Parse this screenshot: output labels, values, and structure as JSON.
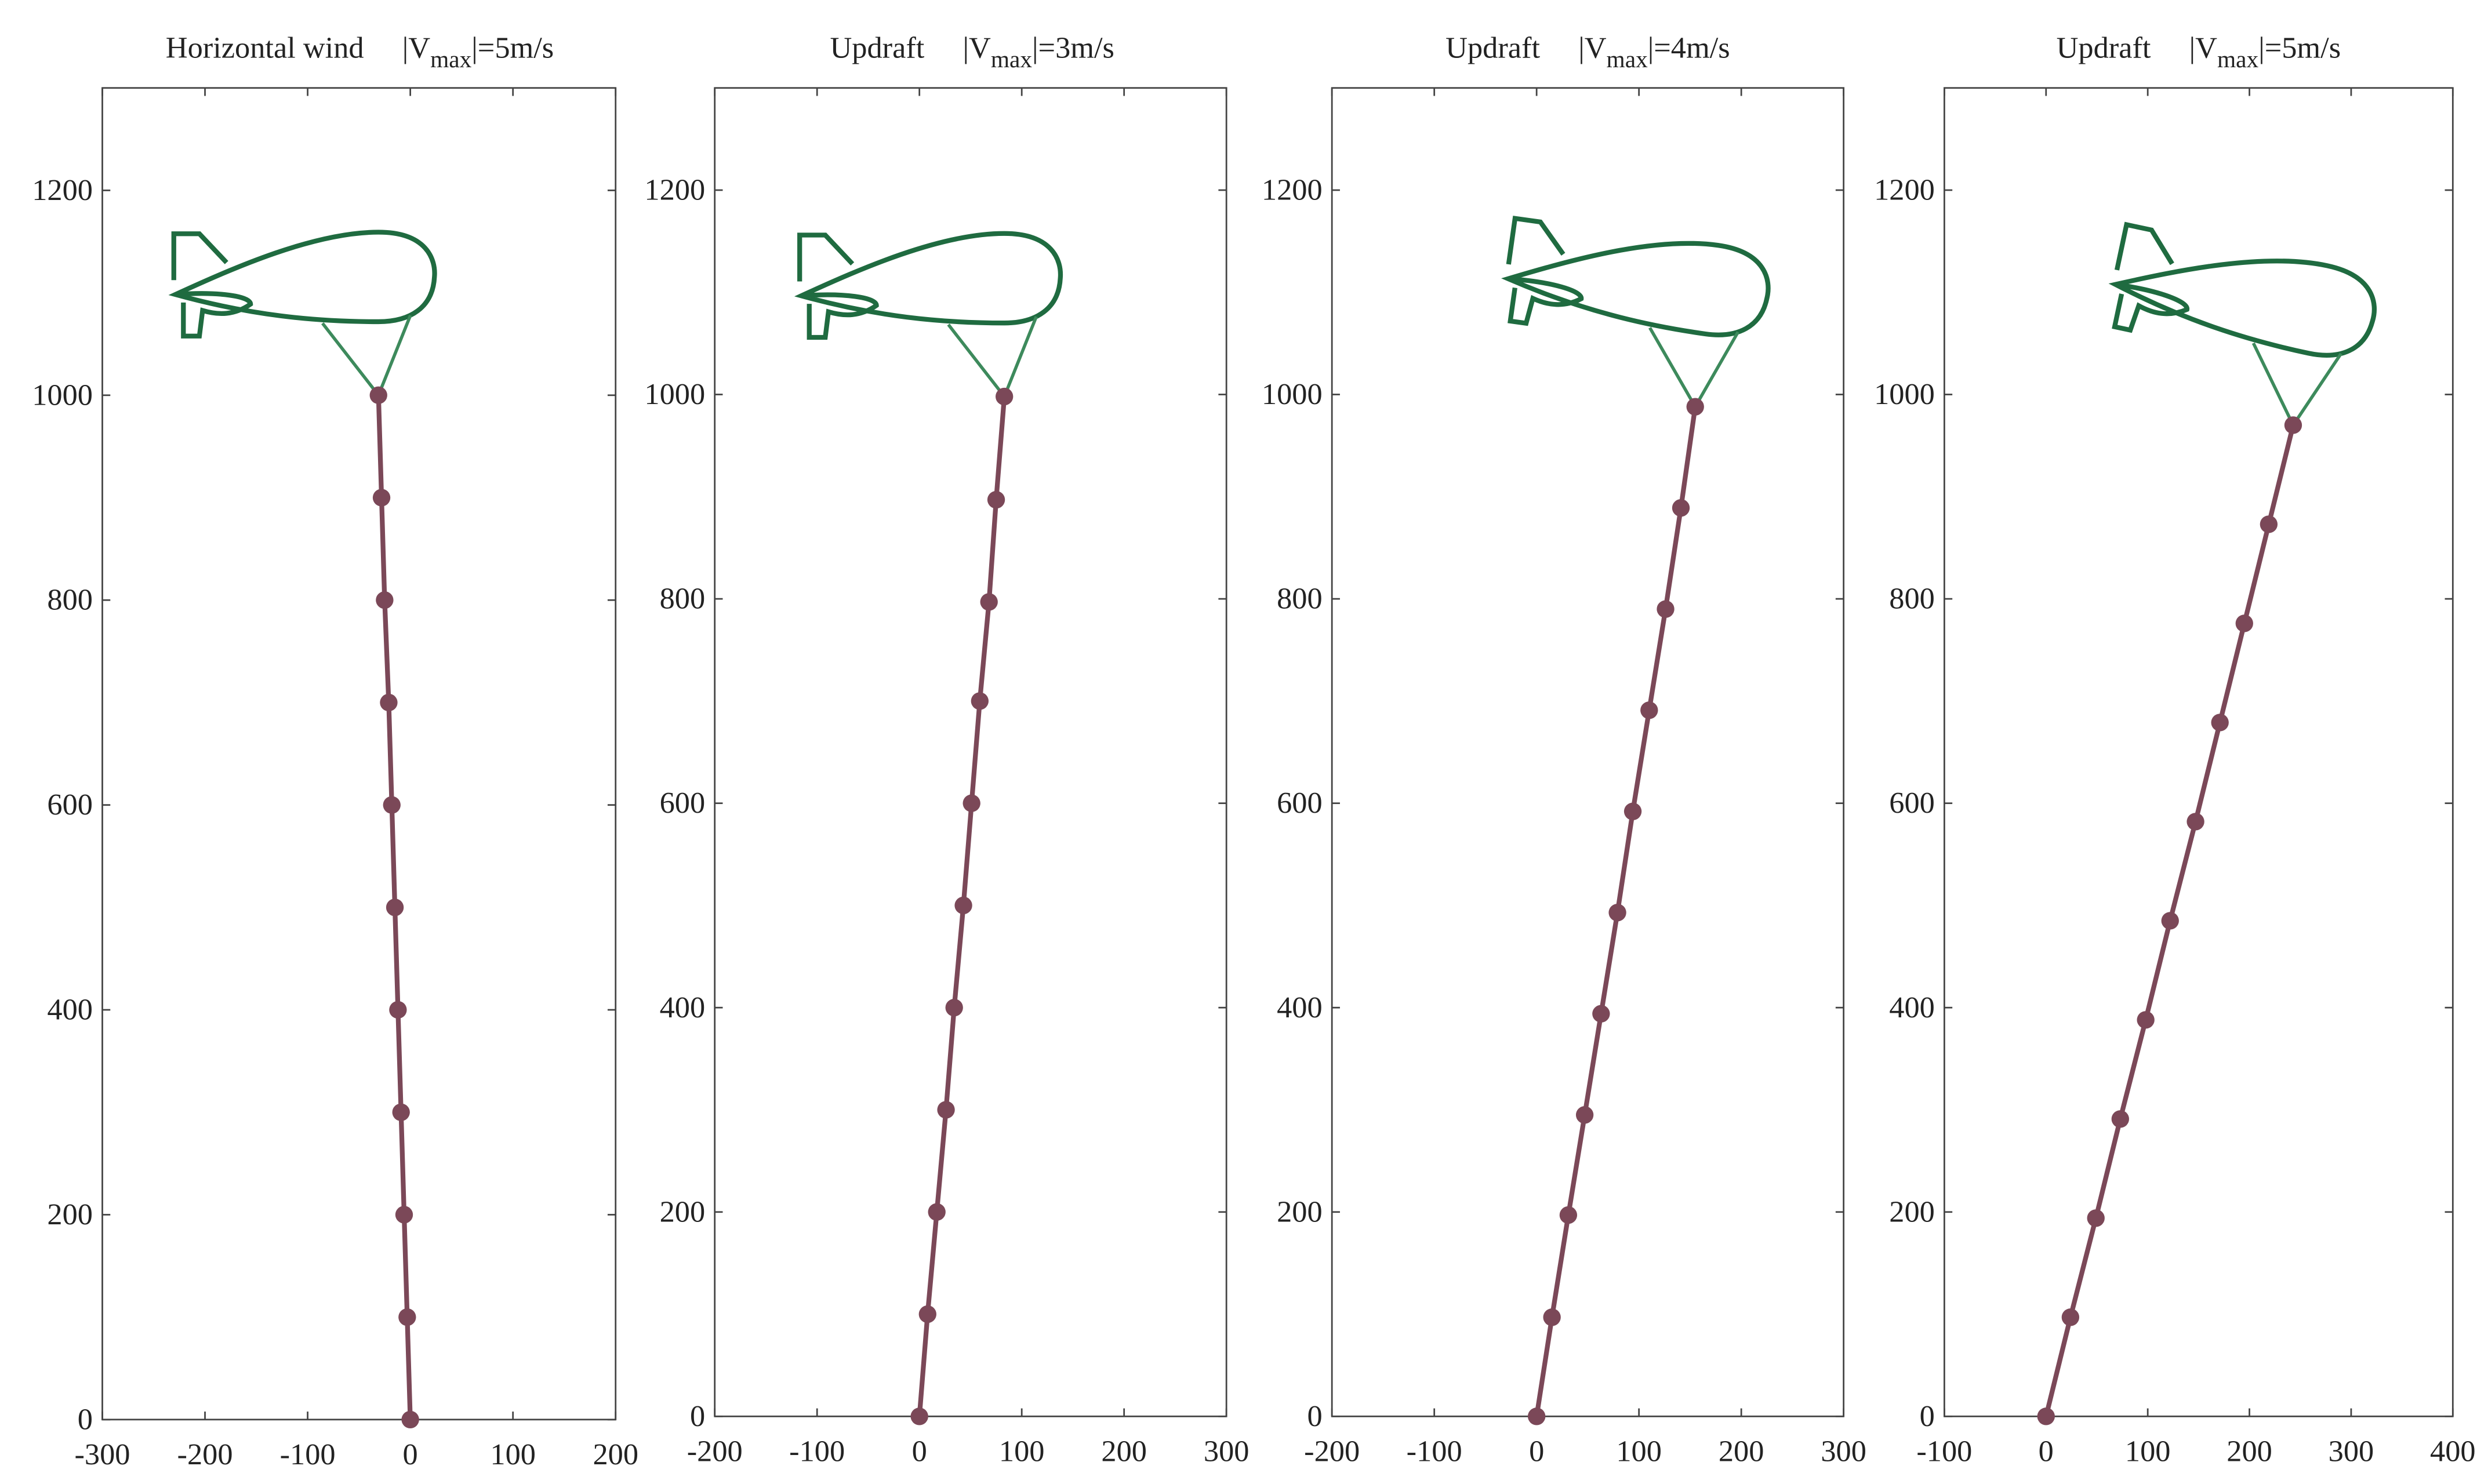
{
  "chart_data": [
    {
      "type": "line",
      "title": "Horizontal wind",
      "title_math": [
        "|V",
        "max",
        "|=5m/s"
      ],
      "xlim": [
        -300,
        200
      ],
      "xticks": [
        -300,
        -200,
        -100,
        0,
        100,
        200
      ],
      "ylim": [
        0,
        1300
      ],
      "yticks": [
        0,
        200,
        400,
        600,
        800,
        1000,
        1200
      ],
      "series": [
        {
          "color": "#7b4858",
          "x": [
            0,
            -3,
            -6,
            -9,
            -12,
            -15,
            -18,
            -21,
            -25,
            -28,
            -31
          ],
          "values": [
            0,
            100,
            200,
            300,
            400,
            500,
            600,
            700,
            800,
            900,
            1000
          ]
        }
      ]
    },
    {
      "type": "line",
      "title": "Updraft",
      "title_math": [
        "|V",
        "max",
        "|=3m/s"
      ],
      "xlim": [
        -200,
        300
      ],
      "xticks": [
        -200,
        -100,
        0,
        100,
        200,
        300
      ],
      "ylim": [
        0,
        1300
      ],
      "yticks": [
        0,
        200,
        400,
        600,
        800,
        1000,
        1200
      ],
      "series": [
        {
          "color": "#7b4858",
          "x": [
            0,
            8,
            17,
            26,
            34,
            43,
            51,
            59,
            68,
            75,
            83
          ],
          "values": [
            0,
            100,
            200,
            300,
            400,
            500,
            600,
            700,
            797,
            897,
            998
          ]
        }
      ]
    },
    {
      "type": "line",
      "title": "Updraft",
      "title_math": [
        "|V",
        "max",
        "|=4m/s"
      ],
      "xlim": [
        -200,
        300
      ],
      "xticks": [
        -200,
        -100,
        0,
        100,
        200,
        300
      ],
      "ylim": [
        0,
        1300
      ],
      "yticks": [
        0,
        200,
        400,
        600,
        800,
        1000,
        1200
      ],
      "series": [
        {
          "color": "#7b4858",
          "x": [
            0,
            15,
            31,
            47,
            63,
            79,
            94,
            110,
            126,
            141,
            155
          ],
          "values": [
            0,
            97,
            197,
            295,
            394,
            493,
            592,
            691,
            790,
            889,
            988
          ]
        }
      ]
    },
    {
      "type": "line",
      "title": "Updraft",
      "title_math": [
        "|V",
        "max",
        "|=5m/s"
      ],
      "xlim": [
        -100,
        400
      ],
      "xticks": [
        -100,
        0,
        100,
        200,
        300,
        400
      ],
      "ylim": [
        0,
        1300
      ],
      "yticks": [
        0,
        200,
        400,
        600,
        800,
        1000,
        1200
      ],
      "series": [
        {
          "color": "#7b4858",
          "x": [
            0,
            24,
            49,
            73,
            98,
            122,
            147,
            171,
            195,
            219,
            243
          ],
          "values": [
            0,
            97,
            194,
            291,
            388,
            485,
            582,
            679,
            776,
            873,
            970
          ]
        }
      ]
    }
  ]
}
